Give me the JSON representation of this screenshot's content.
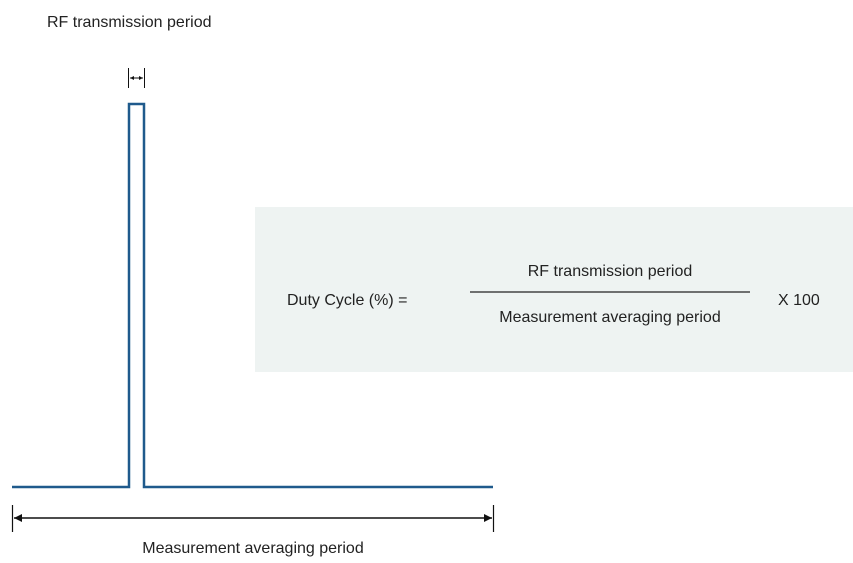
{
  "top_label": "RF transmission period",
  "bottom_label": "Measurement averaging period",
  "formula": {
    "lhs": "Duty Cycle (%) =",
    "numerator": "RF transmission period",
    "denominator": "Measurement averaging period",
    "multiplier": "X 100"
  }
}
